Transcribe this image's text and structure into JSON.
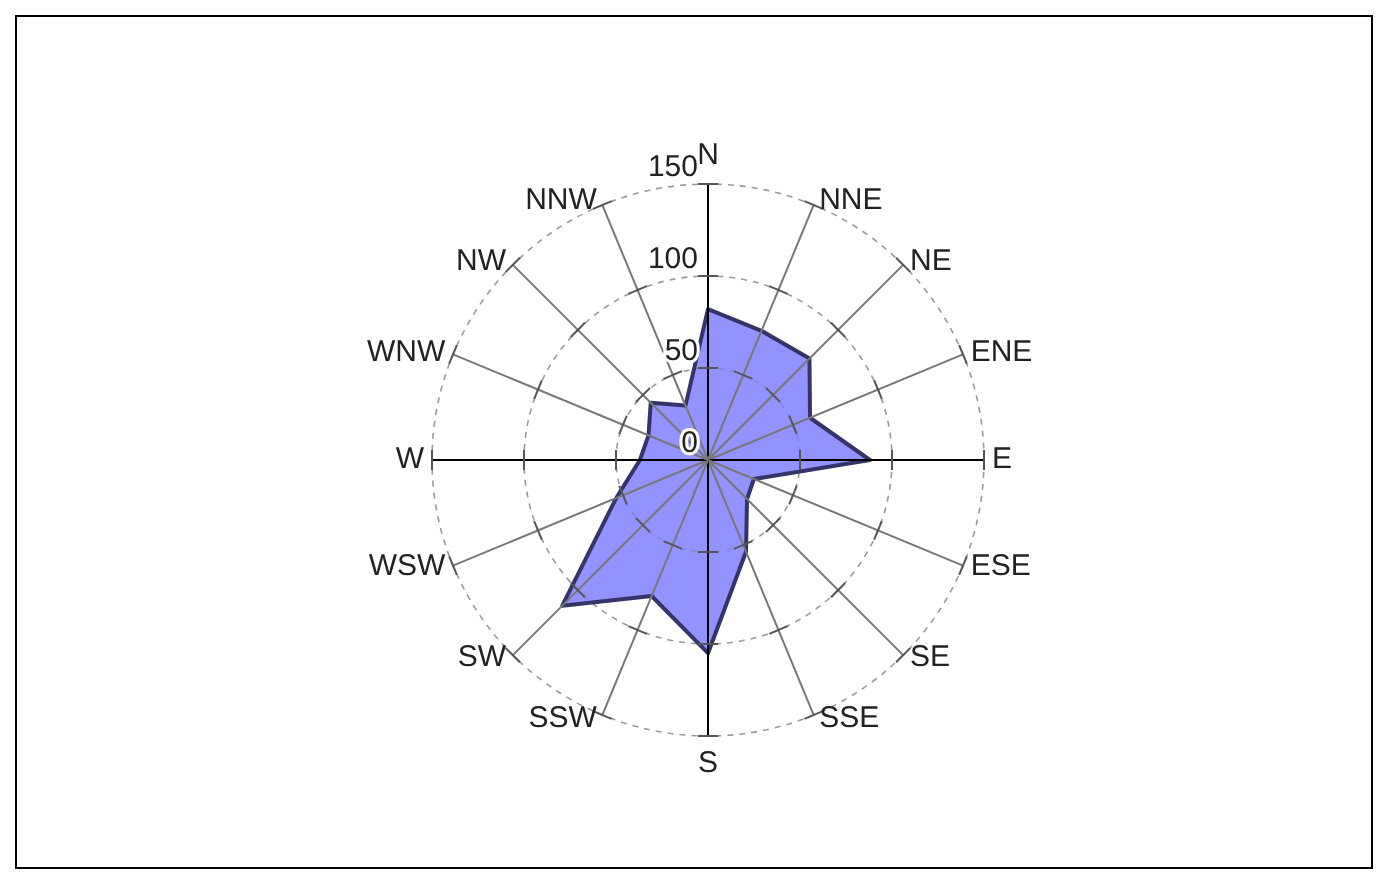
{
  "chart_data": {
    "type": "radar",
    "categories": [
      "N",
      "NNE",
      "NE",
      "ENE",
      "E",
      "ESE",
      "SE",
      "SSE",
      "S",
      "SSW",
      "SW",
      "WSW",
      "W",
      "WNW",
      "NW",
      "NNW"
    ],
    "series": [
      {
        "color": "#8080ff",
        "values": [
          82,
          76,
          78,
          60,
          88,
          27,
          30,
          54,
          105,
          80,
          112,
          54,
          37,
          35,
          44,
          32
        ]
      }
    ],
    "ylim": [
      0,
      150
    ],
    "yticks": [
      0,
      50,
      100,
      150
    ],
    "grid": true,
    "marker": "none"
  }
}
